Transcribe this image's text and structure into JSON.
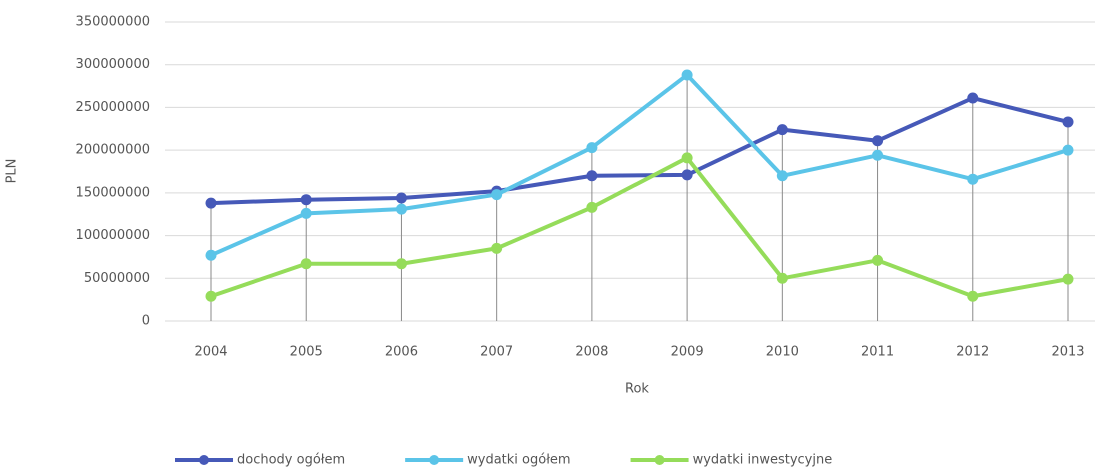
{
  "chart_data": {
    "type": "line",
    "x_label": "Rok",
    "y_label": "PLN",
    "categories": [
      "2004",
      "2005",
      "2006",
      "2007",
      "2008",
      "2009",
      "2010",
      "2011",
      "2012",
      "2013"
    ],
    "series": [
      {
        "name": "dochody ogółem",
        "color": "#4659b8",
        "values": [
          138000000,
          142000000,
          144000000,
          152000000,
          170000000,
          171000000,
          224000000,
          211000000,
          261000000,
          233000000
        ]
      },
      {
        "name": "wydatki ogółem",
        "color": "#5bc4e8",
        "values": [
          77000000,
          126000000,
          131000000,
          148000000,
          203000000,
          288000000,
          170000000,
          194000000,
          166000000,
          200000000
        ]
      },
      {
        "name": "wydatki inwestycyjne",
        "color": "#95dc5a",
        "values": [
          29000000,
          67000000,
          67000000,
          85000000,
          133000000,
          191000000,
          50000000,
          71000000,
          29000000,
          49000000
        ]
      }
    ],
    "ylim": [
      0,
      350000000
    ],
    "yticks": [
      0,
      50000000,
      100000000,
      150000000,
      200000000,
      250000000,
      300000000,
      350000000
    ],
    "grid": true,
    "legend": "bottom"
  }
}
